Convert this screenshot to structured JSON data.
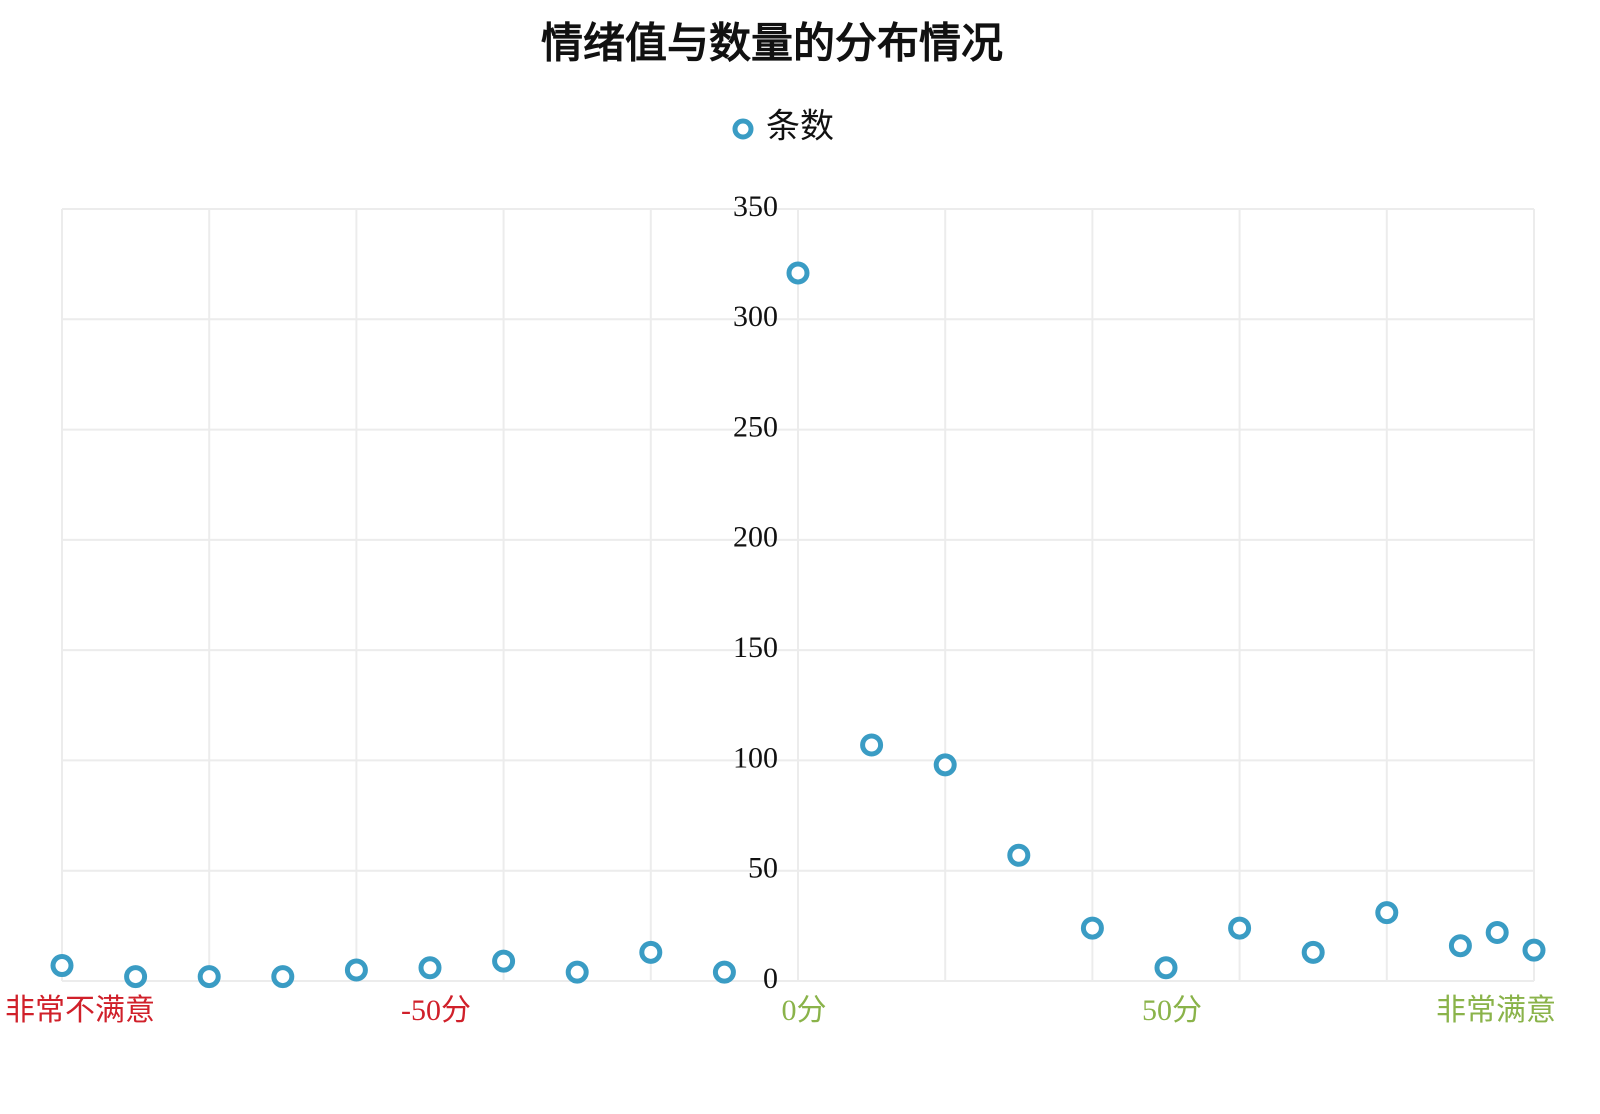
{
  "chart_data": {
    "type": "scatter",
    "title": "情绪值与数量的分布情况",
    "series": [
      {
        "name": "条数",
        "color": "#3a9cc4",
        "x": [
          -100,
          -90,
          -80,
          -70,
          -60,
          -50,
          -40,
          -30,
          -20,
          -10,
          0,
          10,
          20,
          30,
          40,
          50,
          60,
          70,
          80,
          90,
          95,
          100
        ],
        "values": [
          7,
          2,
          2,
          2,
          5,
          6,
          9,
          4,
          13,
          4,
          321,
          107,
          98,
          57,
          24,
          6,
          24,
          13,
          31,
          16,
          22,
          14
        ]
      }
    ],
    "xlim": [
      -100,
      100
    ],
    "xticks": [
      {
        "value": -100,
        "label": "非常不满意"
      },
      {
        "value": -50,
        "label": "-50分"
      },
      {
        "value": 0,
        "label": "0分"
      },
      {
        "value": 50,
        "label": "50分"
      },
      {
        "value": 100,
        "label": "非常满意"
      }
    ],
    "xtick_label_colors": [
      "#d0202a",
      "#d0202a",
      "#8ab34a",
      "#8ab34a",
      "#8ab34a"
    ],
    "xgrid": [
      -100,
      -80,
      -60,
      -40,
      -20,
      0,
      20,
      40,
      60,
      80,
      100
    ],
    "ylim": [
      0,
      350
    ],
    "yticks": [
      0,
      50,
      100,
      150,
      200,
      250,
      300,
      350
    ],
    "grid": true
  }
}
